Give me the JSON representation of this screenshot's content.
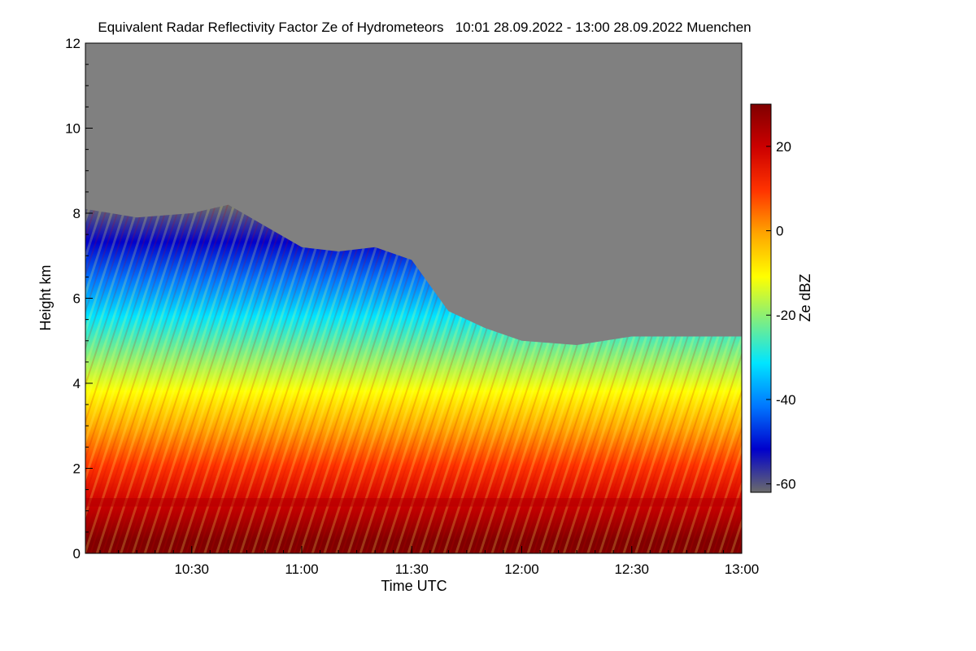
{
  "chart_data": {
    "type": "heatmap",
    "title": "Equivalent Radar Reflectivity Factor Ze of Hydrometeors   10:01 28.09.2022 - 13:00 28.09.2022 Muenchen",
    "xlabel": "Time UTC",
    "ylabel": "Height km",
    "colorbar_label": "Ze dBZ",
    "xlim": [
      "10:01",
      "13:00"
    ],
    "ylim": [
      0,
      12
    ],
    "x_ticks": [
      "10:30",
      "11:00",
      "11:30",
      "12:00",
      "12:30",
      "13:00"
    ],
    "y_ticks": [
      "0",
      "2",
      "4",
      "6",
      "8",
      "10",
      "12"
    ],
    "colorbar_ticks": [
      "-60",
      "-40",
      "-20",
      "0",
      "20"
    ],
    "colorbar_range": [
      -62,
      30
    ],
    "no_signal_color": "#808080",
    "colormap": [
      "#6b6b6b",
      "#0000cc",
      "#0077ff",
      "#00e5ff",
      "#80ee80",
      "#ffff00",
      "#ffa500",
      "#ff3300",
      "#cc0000",
      "#800000"
    ],
    "echo_top_km": [
      {
        "time": "10:01",
        "top": 8.1
      },
      {
        "time": "10:15",
        "top": 7.9
      },
      {
        "time": "10:30",
        "top": 8.0
      },
      {
        "time": "10:40",
        "top": 8.2
      },
      {
        "time": "10:50",
        "top": 7.7
      },
      {
        "time": "11:00",
        "top": 7.2
      },
      {
        "time": "11:10",
        "top": 7.1
      },
      {
        "time": "11:20",
        "top": 7.2
      },
      {
        "time": "11:30",
        "top": 6.9
      },
      {
        "time": "11:40",
        "top": 5.7
      },
      {
        "time": "11:50",
        "top": 5.3
      },
      {
        "time": "12:00",
        "top": 5.0
      },
      {
        "time": "12:15",
        "top": 4.9
      },
      {
        "time": "12:30",
        "top": 5.1
      },
      {
        "time": "12:45",
        "top": 5.1
      },
      {
        "time": "13:00",
        "top": 5.1
      }
    ],
    "melting_layer_km": 1.2
  }
}
